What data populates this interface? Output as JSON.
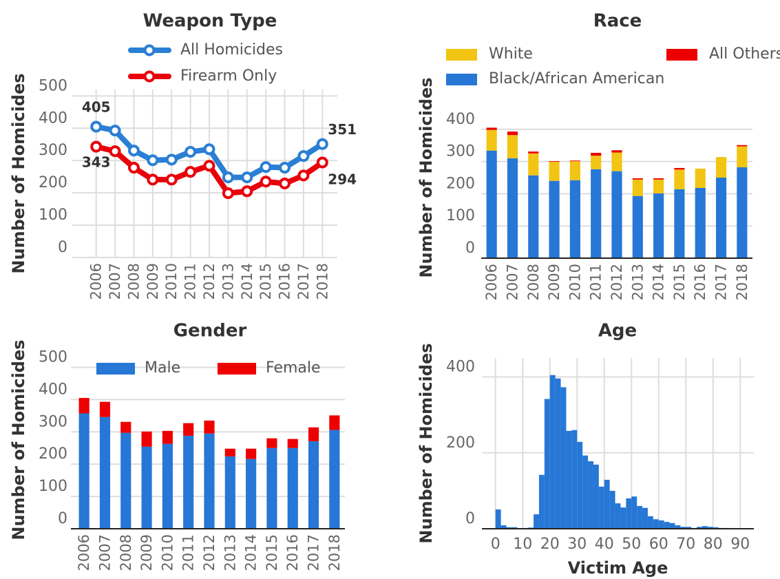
{
  "chart_data": [
    {
      "type": "line",
      "title": "Weapon Type",
      "ylabel": "Number of Homicides",
      "categories": [
        "2006",
        "2007",
        "2008",
        "2009",
        "2010",
        "2011",
        "2012",
        "2013",
        "2014",
        "2015",
        "2016",
        "2017",
        "2018"
      ],
      "series": [
        {
          "name": "All Homicides",
          "color": "#2a7fd4",
          "values": [
            405,
            393,
            331,
            301,
            303,
            327,
            335,
            248,
            248,
            280,
            278,
            314,
            351
          ]
        },
        {
          "name": "Firearm Only",
          "color": "#e8000b",
          "values": [
            343,
            329,
            278,
            241,
            241,
            265,
            284,
            199,
            205,
            235,
            229,
            254,
            294
          ]
        }
      ],
      "ylim": [
        0,
        520
      ],
      "yticks": [
        0,
        100,
        200,
        300,
        400,
        500
      ],
      "grid": "both"
    },
    {
      "type": "stacked_bar",
      "title": "Race",
      "ylabel": "Number of Homicides",
      "categories": [
        "2006",
        "2007",
        "2008",
        "2009",
        "2010",
        "2011",
        "2012",
        "2013",
        "2014",
        "2015",
        "2016",
        "2017",
        "2018"
      ],
      "series": [
        {
          "name": "Black/African American",
          "color": "#2677d6",
          "values": [
            334,
            310,
            257,
            240,
            242,
            276,
            270,
            193,
            201,
            214,
            218,
            250,
            282
          ]
        },
        {
          "name": "White",
          "color": "#f2c414",
          "values": [
            64,
            72,
            68,
            59,
            59,
            42,
            58,
            51,
            43,
            61,
            60,
            64,
            65
          ]
        },
        {
          "name": "All Others",
          "color": "#ee0000",
          "values": [
            7,
            11,
            6,
            2,
            2,
            9,
            7,
            4,
            4,
            5,
            0,
            0,
            4
          ]
        }
      ],
      "ylim": [
        0,
        500
      ],
      "yticks": [
        0,
        100,
        200,
        300,
        400
      ],
      "grid": "y"
    },
    {
      "type": "stacked_bar",
      "title": "Gender",
      "ylabel": "Number of Homicides",
      "categories": [
        "2006",
        "2007",
        "2008",
        "2009",
        "2010",
        "2011",
        "2012",
        "2013",
        "2014",
        "2015",
        "2016",
        "2017",
        "2018"
      ],
      "series": [
        {
          "name": "Male",
          "color": "#2677d6",
          "values": [
            357,
            346,
            297,
            254,
            263,
            288,
            295,
            224,
            216,
            250,
            250,
            271,
            306
          ]
        },
        {
          "name": "Female",
          "color": "#ee0000",
          "values": [
            48,
            47,
            34,
            47,
            40,
            39,
            40,
            24,
            32,
            30,
            28,
            43,
            45
          ]
        }
      ],
      "ylim": [
        0,
        550
      ],
      "yticks": [
        0,
        100,
        200,
        300,
        400,
        500
      ],
      "grid": "y"
    },
    {
      "type": "histogram",
      "title": "Age",
      "ylabel": "Number of Homicides",
      "xlabel": "Victim Age",
      "bins": [
        0,
        2,
        4,
        6,
        8,
        10,
        12,
        14,
        16,
        18,
        20,
        22,
        24,
        26,
        28,
        30,
        32,
        34,
        36,
        38,
        40,
        42,
        44,
        46,
        48,
        50,
        52,
        54,
        56,
        58,
        60,
        62,
        64,
        66,
        68,
        70,
        72,
        74,
        76,
        78,
        80,
        82,
        84,
        86,
        88,
        90,
        92,
        94
      ],
      "values": [
        51,
        9,
        4,
        4,
        1,
        2,
        3,
        38,
        142,
        342,
        405,
        396,
        373,
        258,
        260,
        229,
        193,
        178,
        169,
        111,
        129,
        100,
        67,
        56,
        80,
        85,
        60,
        55,
        33,
        25,
        22,
        18,
        15,
        9,
        5,
        5,
        2,
        5,
        7,
        5,
        4,
        2,
        2,
        1,
        1,
        0,
        0
      ],
      "color": "#2677d6",
      "xlim": [
        -5,
        95
      ],
      "xticks": [
        0,
        10,
        20,
        30,
        40,
        50,
        60,
        70,
        80,
        90
      ],
      "ylim": [
        0,
        450
      ],
      "yticks": [
        0,
        200,
        400
      ],
      "grid": "both"
    }
  ]
}
